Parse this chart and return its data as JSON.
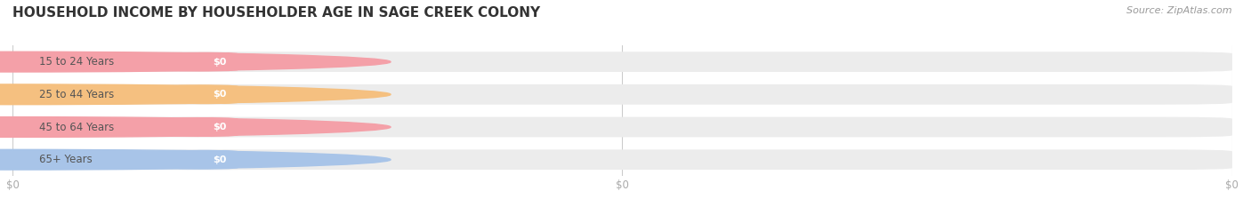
{
  "title": "HOUSEHOLD INCOME BY HOUSEHOLDER AGE IN SAGE CREEK COLONY",
  "source": "Source: ZipAtlas.com",
  "categories": [
    "15 to 24 Years",
    "25 to 44 Years",
    "45 to 64 Years",
    "65+ Years"
  ],
  "values": [
    0,
    0,
    0,
    0
  ],
  "bar_colors": [
    "#f4a0a8",
    "#f5c080",
    "#f4a0a8",
    "#a8c4e8"
  ],
  "bar_bg_color": "#ececec",
  "background_color": "#ffffff",
  "title_fontsize": 11,
  "tick_label_color": "#aaaaaa",
  "source_color": "#999999",
  "x_tick_labels": [
    "$0",
    "$0"
  ],
  "label_text_color": "#555555",
  "value_text_color": "#ffffff",
  "grid_line_color": "#cccccc"
}
